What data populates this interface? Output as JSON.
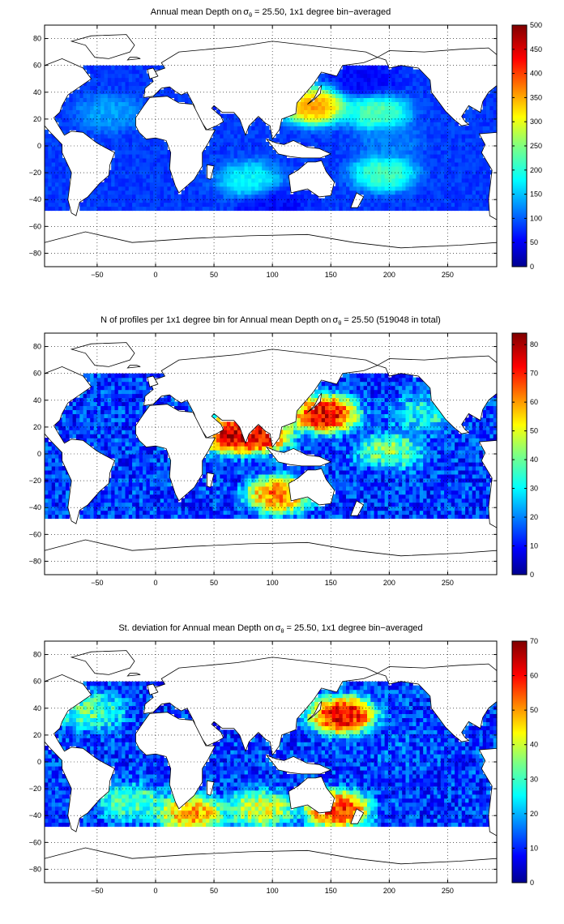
{
  "colormap": "jet",
  "colors": {
    "land": "#ffffff",
    "coastline": "#000000",
    "grid": "#000000",
    "empty_ocean": "#ffffff"
  },
  "chart_data": [
    {
      "type": "heatmap",
      "title_pre": "Annual mean Depth on",
      "title_symbol": "σ",
      "title_subscript": "θ",
      "title_post": " = 25.50, 1x1 degree bin−averaged",
      "x_ticks": [
        "−50",
        "0",
        "50",
        "100",
        "150",
        "200",
        "250"
      ],
      "x_tick_values": [
        -50,
        0,
        50,
        100,
        150,
        200,
        250
      ],
      "y_ticks": [
        "80",
        "60",
        "40",
        "20",
        "0",
        "−20",
        "−40",
        "−60",
        "−80"
      ],
      "y_tick_values": [
        80,
        60,
        40,
        20,
        0,
        -20,
        -40,
        -60,
        -80
      ],
      "xlim": [
        -95,
        292
      ],
      "ylim": [
        -90,
        90
      ],
      "grid": "dotted",
      "colorbar": {
        "min": 0,
        "max": 500,
        "ticks": [
          "500",
          "450",
          "400",
          "350",
          "300",
          "250",
          "200",
          "150",
          "100",
          "50",
          "0"
        ],
        "tick_values": [
          500,
          450,
          400,
          350,
          300,
          250,
          200,
          150,
          100,
          50,
          0
        ]
      },
      "data_coverage_lat": [
        -48,
        60
      ],
      "features": [
        {
          "region": "north-west-pacific-kuroshio",
          "lon": 135,
          "lat": 30,
          "value": 400
        },
        {
          "region": "north-pacific-subtropical-band",
          "lon": 190,
          "lat": 25,
          "value": 250
        },
        {
          "region": "south-pacific-subtropical-band",
          "lon": 195,
          "lat": -20,
          "value": 240
        },
        {
          "region": "south-indian-subtropical",
          "lon": 80,
          "lat": -25,
          "value": 200
        },
        {
          "region": "north-atlantic-subtropical",
          "lon": -40,
          "lat": 25,
          "value": 150
        },
        {
          "region": "equatorial-pacific",
          "lon": 200,
          "lat": 3,
          "value": 130
        },
        {
          "region": "subpolar-north-pacific",
          "lon": 180,
          "lat": 50,
          "value": 60
        },
        {
          "region": "southern-ocean-edge",
          "lon": 100,
          "lat": -45,
          "value": 60
        }
      ]
    },
    {
      "type": "heatmap",
      "title_pre": "N of profiles per 1x1 degree bin for Annual mean Depth on",
      "title_symbol": "σ",
      "title_subscript": "θ",
      "title_post": " = 25.50 (519048 in total)",
      "x_ticks": [
        "−50",
        "0",
        "50",
        "100",
        "150",
        "200",
        "250"
      ],
      "x_tick_values": [
        -50,
        0,
        50,
        100,
        150,
        200,
        250
      ],
      "y_ticks": [
        "80",
        "60",
        "40",
        "20",
        "0",
        "−20",
        "−40",
        "−60",
        "−80"
      ],
      "y_tick_values": [
        80,
        60,
        40,
        20,
        0,
        -20,
        -40,
        -60,
        -80
      ],
      "xlim": [
        -95,
        292
      ],
      "ylim": [
        -90,
        90
      ],
      "grid": "dotted",
      "total_profiles": 519048,
      "colorbar": {
        "min": 0,
        "max": 84,
        "ticks": [
          "80",
          "70",
          "60",
          "50",
          "40",
          "30",
          "20",
          "10",
          "0"
        ],
        "tick_values": [
          80,
          70,
          60,
          50,
          40,
          30,
          20,
          10,
          0
        ]
      },
      "data_coverage_lat": [
        -48,
        60
      ],
      "features": [
        {
          "region": "kuroshio-japan",
          "lon": 145,
          "lat": 30,
          "value": 84
        },
        {
          "region": "arabian-sea",
          "lon": 65,
          "lat": 15,
          "value": 84
        },
        {
          "region": "bay-of-bengal",
          "lon": 88,
          "lat": 15,
          "value": 84
        },
        {
          "region": "south-east-indian",
          "lon": 105,
          "lat": -30,
          "value": 70
        },
        {
          "region": "equatorial-pacific-band",
          "lon": 200,
          "lat": 2,
          "value": 45
        },
        {
          "region": "north-east-pacific",
          "lon": 230,
          "lat": 30,
          "value": 35
        },
        {
          "region": "open-ocean-background",
          "lon": 190,
          "lat": -20,
          "value": 15
        }
      ]
    },
    {
      "type": "heatmap",
      "title_pre": "St. deviation for Annual mean Depth on",
      "title_symbol": "σ",
      "title_subscript": "θ",
      "title_post": " = 25.50, 1x1 degree bin−averaged",
      "x_ticks": [
        "−50",
        "0",
        "50",
        "100",
        "150",
        "200",
        "250"
      ],
      "x_tick_values": [
        -50,
        0,
        50,
        100,
        150,
        200,
        250
      ],
      "y_ticks": [
        "80",
        "60",
        "40",
        "20",
        "0",
        "−20",
        "−40",
        "−60",
        "−80"
      ],
      "y_tick_values": [
        80,
        60,
        40,
        20,
        0,
        -20,
        -40,
        -60,
        -80
      ],
      "xlim": [
        -95,
        292
      ],
      "ylim": [
        -90,
        90
      ],
      "grid": "dotted",
      "colorbar": {
        "min": 0,
        "max": 70,
        "ticks": [
          "70",
          "60",
          "50",
          "40",
          "30",
          "20",
          "10",
          "0"
        ],
        "tick_values": [
          70,
          60,
          50,
          40,
          30,
          20,
          10,
          0
        ]
      },
      "data_coverage_lat": [
        -48,
        60
      ],
      "features": [
        {
          "region": "kuroshio-extension",
          "lon": 160,
          "lat": 35,
          "value": 70
        },
        {
          "region": "east-australian-current",
          "lon": 155,
          "lat": -35,
          "value": 65
        },
        {
          "region": "agulhas-retroflection",
          "lon": 30,
          "lat": -38,
          "value": 55
        },
        {
          "region": "south-indian-band",
          "lon": 90,
          "lat": -35,
          "value": 45
        },
        {
          "region": "gulf-stream",
          "lon": -55,
          "lat": 38,
          "value": 35
        },
        {
          "region": "south-atlantic-band",
          "lon": -20,
          "lat": -30,
          "value": 35
        },
        {
          "region": "open-ocean-background",
          "lon": 200,
          "lat": 10,
          "value": 15
        }
      ]
    }
  ]
}
